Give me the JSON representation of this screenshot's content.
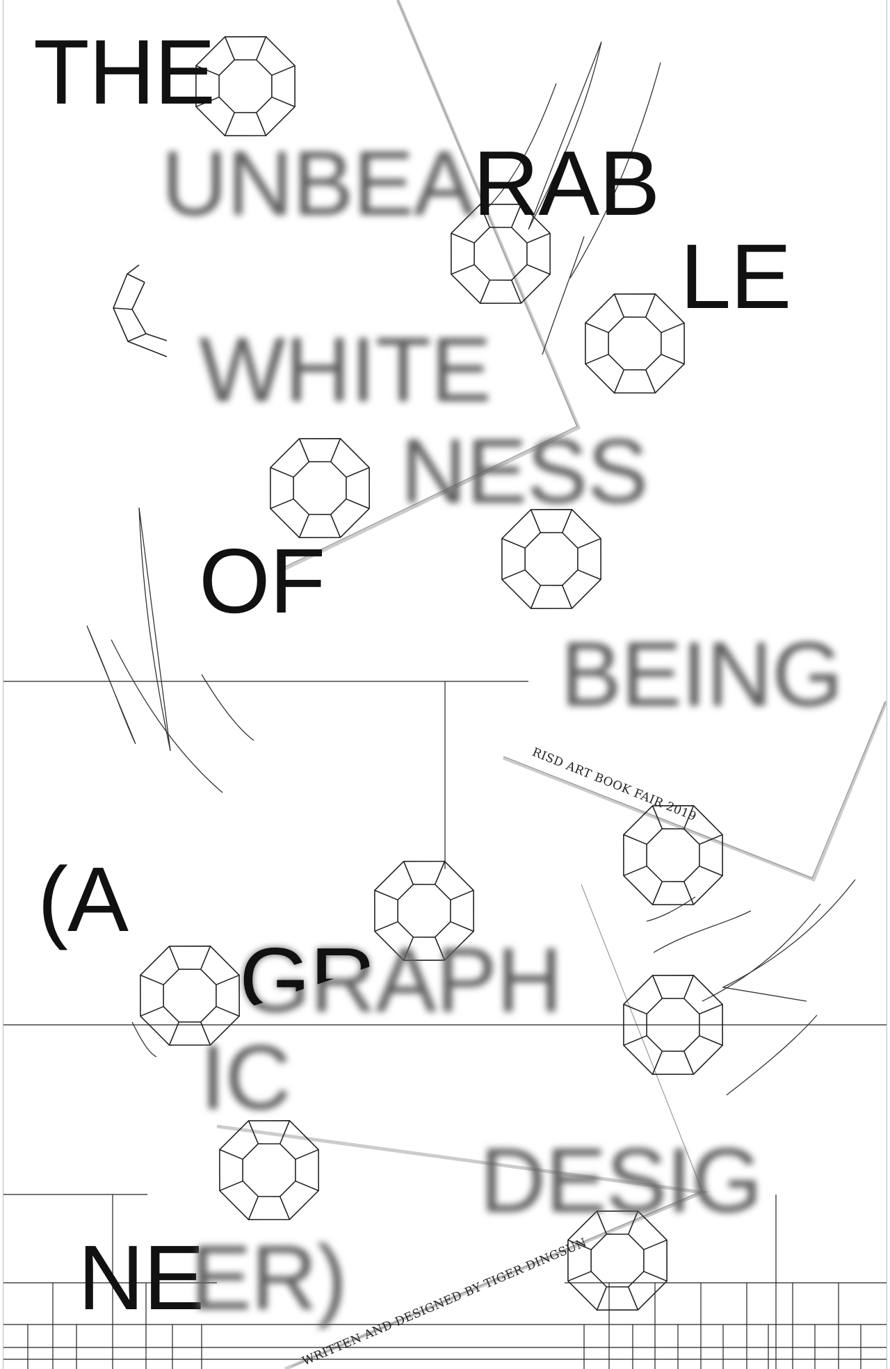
{
  "poster": {
    "title_words": {
      "the": "THE",
      "unbea": "UNBEA",
      "rab": "RAB",
      "le": "LE",
      "white": "WHITE",
      "ness": "NESS",
      "of": "OF",
      "being": "BEING",
      "open_a": "(A",
      "gr": "GR",
      "graph": "GRAPH",
      "ic": "IC",
      "desig": "DESIG",
      "ne": "NE",
      "er": "ER)"
    },
    "event_label": "RISD ART BOOK FAIR 2019",
    "credit_label": "WRITTEN AND DESIGNED BY TIGER DINGSUN"
  },
  "colors": {
    "background": "#ffffff",
    "ink": "#111111",
    "blur_ink": "#5e5e5e",
    "line": "#222222",
    "paper_shadow": "#cccccc"
  }
}
